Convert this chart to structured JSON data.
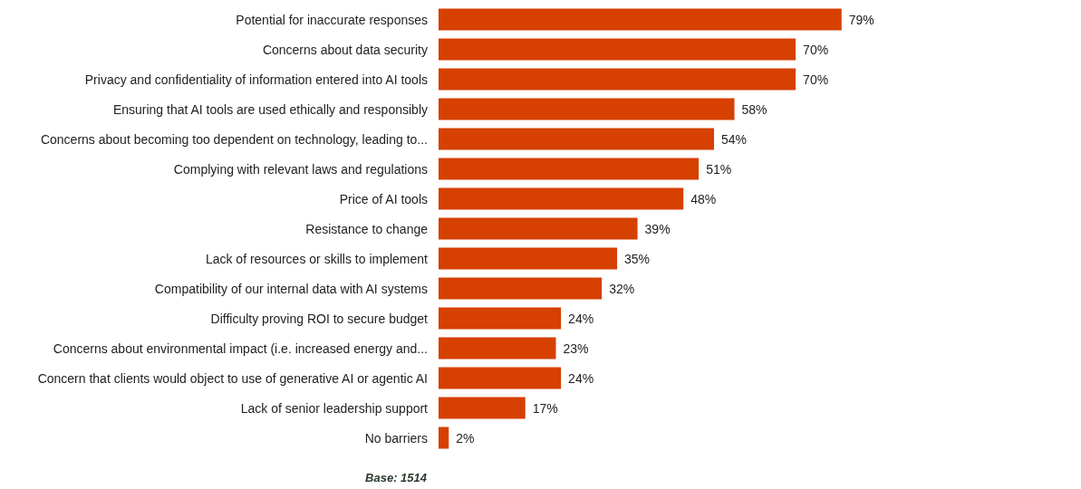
{
  "chart_data": {
    "type": "bar",
    "orientation": "horizontal",
    "categories": [
      "Potential for inaccurate responses",
      "Concerns about data security",
      "Privacy and confidentiality of information entered into AI tools",
      "Ensuring that AI tools are used ethically and responsibly",
      "Concerns about becoming too dependent on technology, leading to...",
      "Complying with relevant laws and regulations",
      "Price of AI tools",
      "Resistance to change",
      "Lack of resources or skills to implement",
      "Compatibility of our internal data with AI systems",
      "Difficulty proving ROI to secure budget",
      "Concerns about environmental impact (i.e. increased energy and...",
      "Concern that clients would object to use of generative AI or agentic AI",
      "Lack of senior leadership support",
      "No barriers"
    ],
    "values": [
      79,
      70,
      70,
      58,
      54,
      51,
      48,
      39,
      35,
      32,
      24,
      23,
      24,
      17,
      2
    ],
    "value_labels": [
      "79%",
      "70%",
      "70%",
      "58%",
      "54%",
      "51%",
      "48%",
      "39%",
      "35%",
      "32%",
      "24%",
      "23%",
      "24%",
      "17%",
      "2%"
    ],
    "color": "#d64000",
    "annotations": [
      "Base: 1514"
    ]
  }
}
